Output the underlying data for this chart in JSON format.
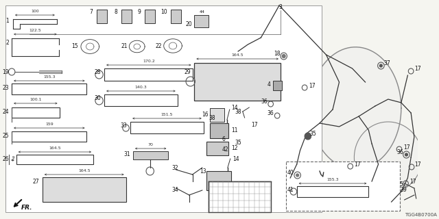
{
  "bg_color": "#f5f5f0",
  "diagram_code": "TGG4B0700A",
  "border_lw": 0.8,
  "part_lw": 0.7,
  "dim_lw": 0.5,
  "fs_label": 5.5,
  "fs_dim": 4.5,
  "fs_num": 5.0,
  "tc": "#111111",
  "gc": "#555555"
}
